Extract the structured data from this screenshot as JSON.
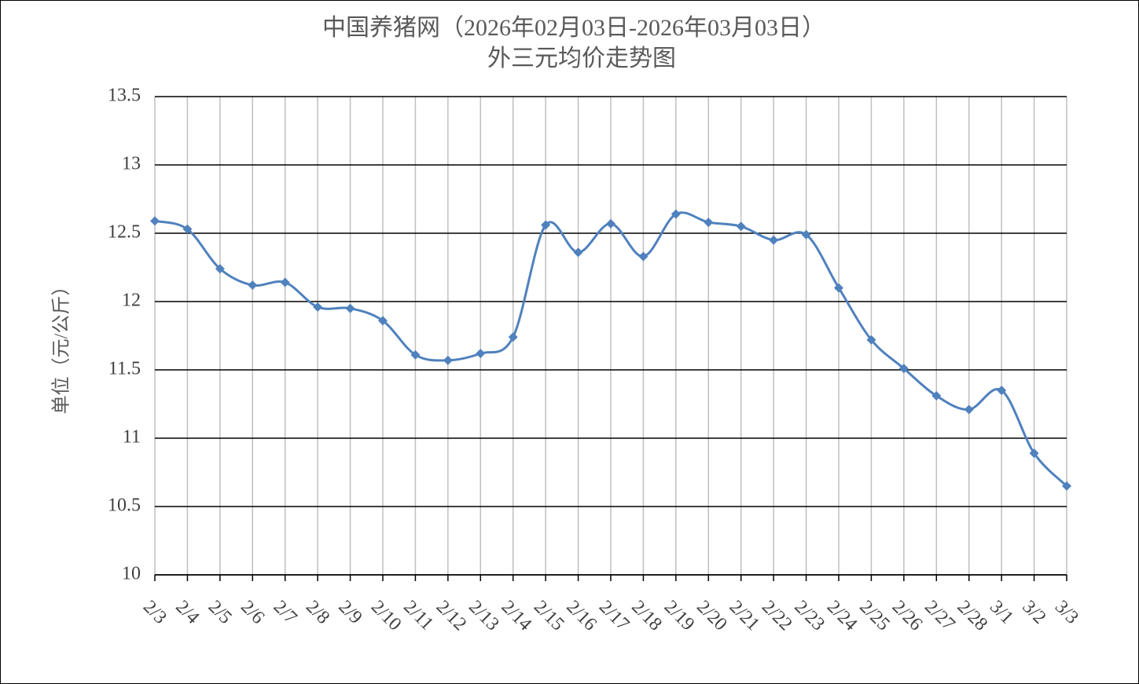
{
  "chart_data": {
    "type": "line",
    "title": "中国养猪网（2026年02月03日-2026年03月03日）",
    "subtitle": "外三元均价走势图",
    "y_label": "单位（元/公斤）",
    "categories": [
      "2/3",
      "2/4",
      "2/5",
      "2/6",
      "2/7",
      "2/8",
      "2/9",
      "2/10",
      "2/11",
      "2/12",
      "2/13",
      "2/14",
      "2/15",
      "2/16",
      "2/17",
      "2/18",
      "2/19",
      "2/20",
      "2/21",
      "2/22",
      "2/23",
      "2/24",
      "2/25",
      "2/26",
      "2/27",
      "2/28",
      "3/1",
      "3/2",
      "3/3"
    ],
    "series": [
      {
        "name": "外三元",
        "color": "#4f81bd",
        "values": [
          12.59,
          12.53,
          12.24,
          12.12,
          12.14,
          11.96,
          11.95,
          11.86,
          11.61,
          11.57,
          11.62,
          11.74,
          12.56,
          12.36,
          12.57,
          12.33,
          12.64,
          12.58,
          12.55,
          12.45,
          12.49,
          12.1,
          11.72,
          11.51,
          11.31,
          11.21,
          11.35,
          10.89,
          10.65
        ]
      }
    ],
    "ylim": [
      10,
      13.5
    ],
    "yticks": [
      10,
      10.5,
      11,
      11.5,
      12,
      12.5,
      13,
      13.5
    ],
    "grid": true
  }
}
